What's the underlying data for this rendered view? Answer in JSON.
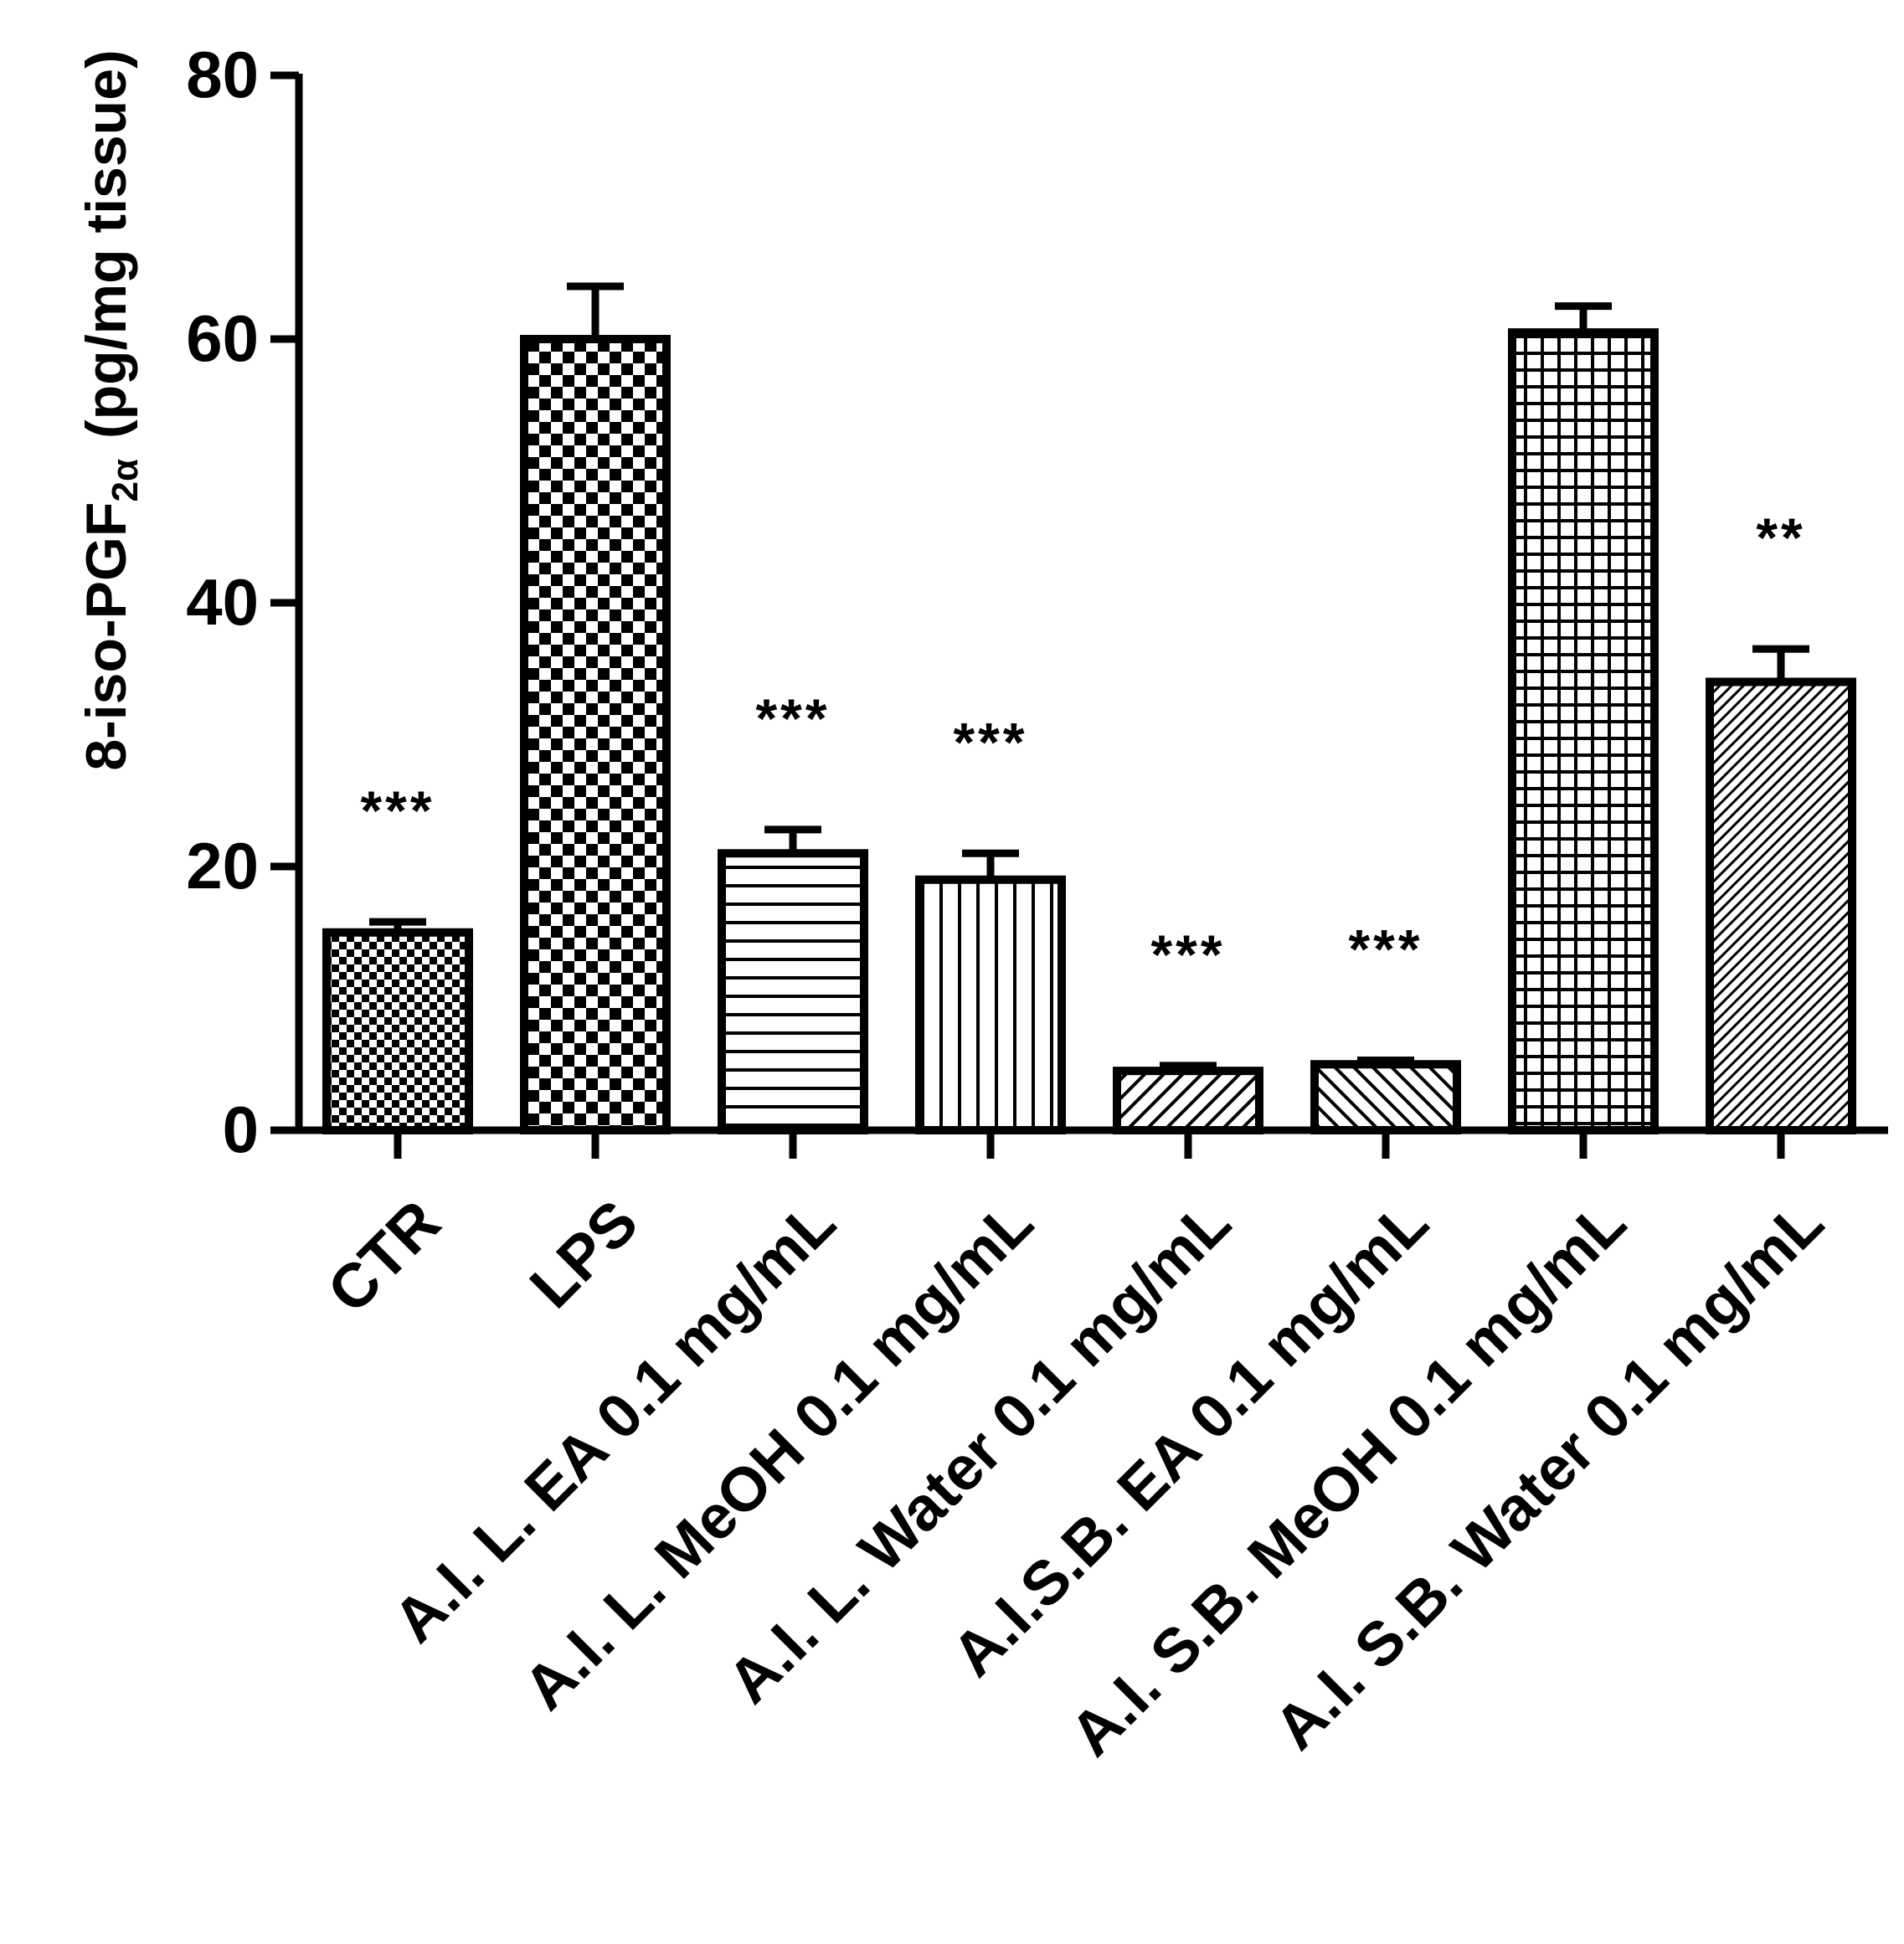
{
  "chart_data": {
    "type": "bar",
    "ylabel_main": "8-iso-PGF",
    "ylabel_sub": "2α",
    "ylabel_unit": "(pg/mg tissue)",
    "ylim": [
      0,
      80
    ],
    "yticks": [
      "0",
      "20",
      "40",
      "60",
      "80"
    ],
    "ytick_values": [
      0,
      20,
      40,
      60,
      80
    ],
    "categories": [
      "CTR",
      "LPS",
      "A.I. L. EA 0.1 mg/mL",
      "A.I. L. MeOH 0.1 mg/mL",
      "A.I. L. Water 0.1 mg/mL",
      "A.I.S.B. EA 0.1 mg/mL",
      "A.I. S.B. MeOH 0.1 mg/mL",
      "A.I. S.B. Water 0.1 mg/mL"
    ],
    "values": [
      15,
      60,
      21,
      19,
      4.5,
      5,
      60.5,
      34
    ],
    "errors": [
      0.8,
      4,
      1.8,
      2,
      0.4,
      0.3,
      2,
      2.5
    ],
    "significance": [
      "***",
      "",
      "***",
      "***",
      "***",
      "***",
      "",
      "**"
    ],
    "patterns": [
      "small-checker",
      "large-checker",
      "horizontal-lines",
      "vertical-lines",
      "diagonal-up",
      "diagonal-down",
      "grid",
      "fine-diagonal"
    ],
    "grid": false,
    "legend": "none"
  }
}
